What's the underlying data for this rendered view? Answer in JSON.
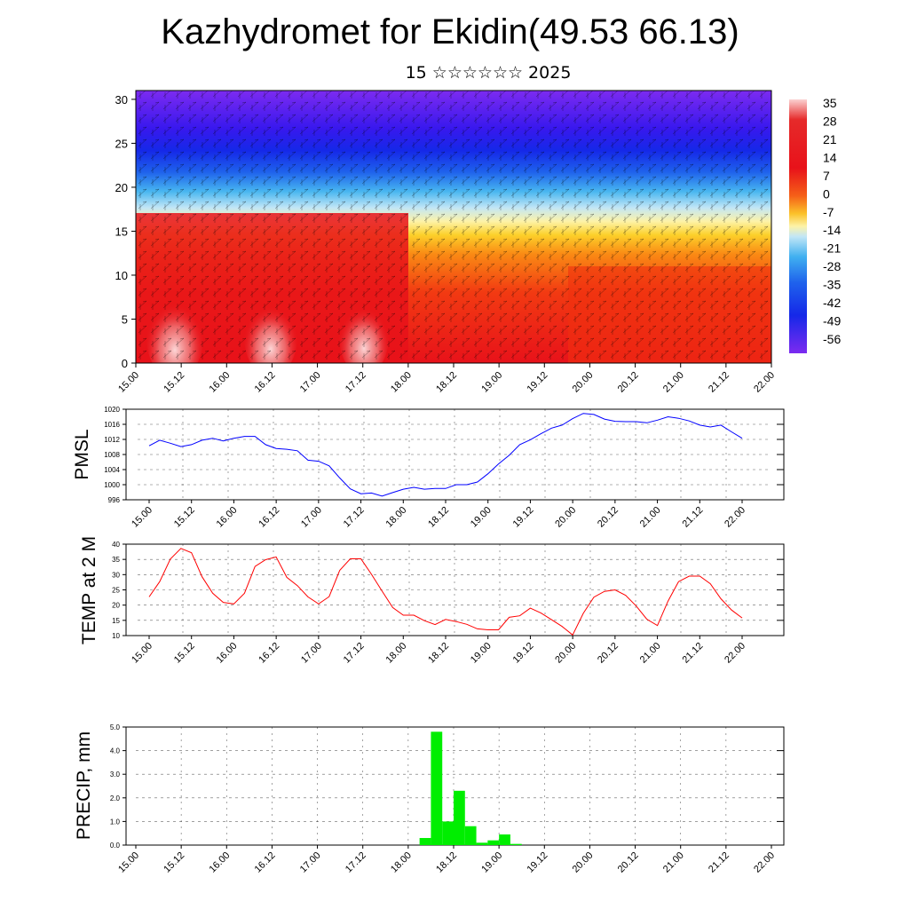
{
  "title": "Kazhydromet for Ekidin(49.53 66.13)",
  "subtitle": "15 ☆☆☆☆☆☆ 2025",
  "colors": {
    "pmsl_line": "#0000ff",
    "temp_line": "#ff0000",
    "precip_bar": "#00ee00",
    "axis": "#000000"
  },
  "time_ticks": [
    "15.00",
    "15.12",
    "16.00",
    "16.12",
    "17.00",
    "17.12",
    "18.00",
    "18.12",
    "19.00",
    "19.12",
    "20.00",
    "20.12",
    "21.00",
    "21.12",
    "22.00"
  ],
  "chart_data": [
    {
      "type": "heatmap",
      "name": "cross-section",
      "x_ticks": [
        "15.00",
        "15.12",
        "16.00",
        "16.12",
        "17.00",
        "17.12",
        "18.00",
        "18.12",
        "19.00",
        "19.12",
        "20.00",
        "20.12",
        "21.00",
        "21.12",
        "22.00"
      ],
      "y_ticks": [
        0,
        5,
        10,
        15,
        20,
        25,
        30
      ],
      "ylim": [
        0,
        31
      ],
      "colorbar_labels": [
        "35",
        "28",
        "21",
        "14",
        "7",
        "0",
        "-7",
        "-14",
        "-21",
        "-28",
        "-35",
        "-42",
        "-49",
        "-56"
      ],
      "colorbar_range": [
        -60,
        40
      ]
    },
    {
      "type": "line",
      "name": "PMSL",
      "ylabel": "PMSL",
      "ylim": [
        996,
        1020
      ],
      "y_ticks": [
        "1020",
        "1016",
        "1012",
        "1008",
        "1004",
        "1000",
        "996"
      ],
      "x_ticks": [
        "15.00",
        "15.12",
        "16.00",
        "16.12",
        "17.00",
        "17.12",
        "18.00",
        "18.12",
        "19.00",
        "19.12",
        "20.00",
        "20.12",
        "21.00",
        "21.12",
        "22.00"
      ],
      "x_hours": [
        0,
        3,
        6,
        9,
        12,
        15,
        18,
        21,
        24,
        27,
        30,
        33,
        36,
        39,
        42,
        45,
        48,
        51,
        54,
        57,
        60,
        63,
        66,
        69,
        72,
        75,
        78,
        81,
        84,
        87,
        90,
        93,
        96,
        99,
        102,
        105,
        108,
        111,
        114,
        117,
        120,
        123,
        126,
        129,
        132,
        135,
        138,
        141,
        144,
        147,
        150,
        153,
        156,
        159,
        162,
        165,
        168
      ],
      "values": [
        1010.3,
        1011.8,
        1011.0,
        1010.1,
        1010.6,
        1011.8,
        1012.3,
        1011.6,
        1012.3,
        1012.8,
        1012.8,
        1010.6,
        1009.6,
        1009.4,
        1009.0,
        1006.5,
        1006.2,
        1005.0,
        1001.8,
        998.9,
        997.6,
        997.8,
        997.0,
        997.9,
        998.8,
        999.3,
        998.8,
        999.0,
        999.0,
        1000.0,
        1000.0,
        1000.7,
        1002.9,
        1005.5,
        1007.8,
        1010.6,
        1011.9,
        1013.5,
        1015.0,
        1015.8,
        1017.5,
        1018.9,
        1018.6,
        1017.4,
        1016.8,
        1016.7,
        1016.7,
        1016.4,
        1017.1,
        1018.0,
        1017.6,
        1016.9,
        1015.8,
        1015.3,
        1015.8,
        1014.0,
        1012.3
      ]
    },
    {
      "type": "line",
      "name": "TEMP at 2 M",
      "ylabel": "TEMP at 2 M",
      "ylim": [
        10,
        40
      ],
      "y_ticks": [
        "40",
        "35",
        "30",
        "25",
        "20",
        "15",
        "10"
      ],
      "x_ticks": [
        "15.00",
        "15.12",
        "16.00",
        "16.12",
        "17.00",
        "17.12",
        "18.00",
        "18.12",
        "19.00",
        "19.12",
        "20.00",
        "20.12",
        "21.00",
        "21.12",
        "22.00"
      ],
      "x_hours": [
        0,
        3,
        6,
        9,
        12,
        15,
        18,
        21,
        24,
        27,
        30,
        33,
        36,
        39,
        42,
        45,
        48,
        51,
        54,
        57,
        60,
        63,
        66,
        69,
        72,
        75,
        78,
        81,
        84,
        87,
        90,
        93,
        96,
        99,
        102,
        105,
        108,
        111,
        114,
        117,
        120,
        123,
        126,
        129,
        132,
        135,
        138,
        141,
        144,
        147,
        150,
        153,
        156,
        159,
        162,
        165,
        168
      ],
      "values": [
        22.7,
        27.7,
        35.1,
        38.6,
        37.2,
        29.3,
        23.9,
        20.9,
        20.4,
        23.9,
        32.7,
        34.9,
        35.8,
        29.1,
        26.4,
        22.7,
        20.4,
        22.8,
        31.4,
        35.2,
        35.2,
        30.1,
        24.6,
        19.2,
        16.7,
        16.7,
        14.9,
        13.6,
        15.3,
        14.6,
        13.7,
        12.2,
        11.9,
        11.9,
        16.0,
        16.5,
        19.0,
        17.4,
        15.2,
        13.0,
        10.2,
        17.3,
        22.6,
        24.5,
        25.0,
        23.2,
        19.7,
        15.4,
        13.3,
        21.3,
        27.7,
        29.5,
        29.5,
        27.0,
        22.1,
        18.4,
        15.8
      ]
    },
    {
      "type": "bar",
      "name": "PRECIP",
      "ylabel": "PRECIP, mm",
      "ylim": [
        0,
        5
      ],
      "y_ticks": [
        "5.0",
        "4.0",
        "3.0",
        "2.0",
        "1.0",
        "0.0"
      ],
      "x_ticks": [
        "15.00",
        "15.12",
        "16.00",
        "16.12",
        "17.00",
        "17.12",
        "18.00",
        "18.12",
        "19.00",
        "19.12",
        "20.00",
        "20.12",
        "21.00",
        "21.12",
        "22.00"
      ],
      "bar_start_hours": [
        75,
        78,
        81,
        84,
        87,
        90,
        93,
        96,
        99
      ],
      "bar_width_hours": 3,
      "values": [
        0.3,
        4.8,
        1.0,
        2.3,
        0.8,
        0.1,
        0.2,
        0.45,
        0.05
      ]
    }
  ]
}
